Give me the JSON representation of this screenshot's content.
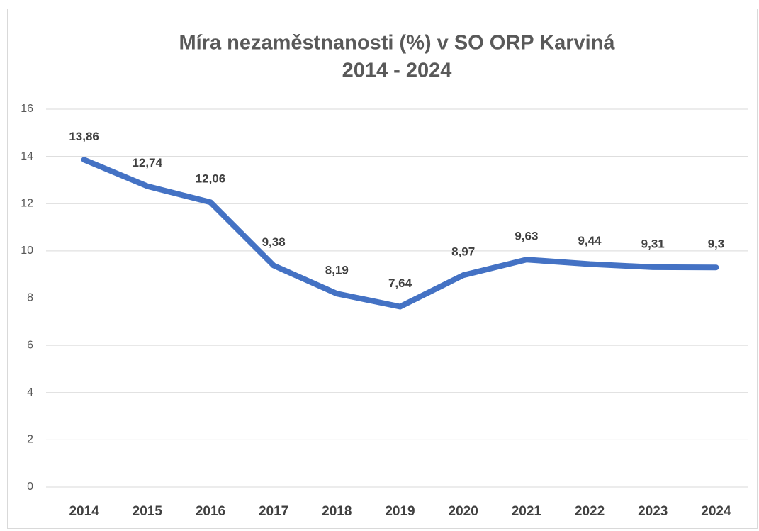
{
  "chart_data": {
    "type": "line",
    "title": "Míra nezaměstnanosti (%) v SO ORP Karviná",
    "subtitle": "2014 - 2024",
    "categories": [
      "2014",
      "2015",
      "2016",
      "2017",
      "2018",
      "2019",
      "2020",
      "2021",
      "2022",
      "2023",
      "2024"
    ],
    "series": [
      {
        "name": "Míra nezaměstnanosti (%)",
        "color": "#4472c4",
        "values": [
          13.86,
          12.74,
          12.06,
          9.38,
          8.19,
          7.64,
          8.97,
          9.63,
          9.44,
          9.31,
          9.3
        ],
        "value_labels": [
          "13,86",
          "12,74",
          "12,06",
          "9,38",
          "8,19",
          "7,64",
          "8,97",
          "9,63",
          "9,44",
          "9,31",
          "9,3"
        ]
      }
    ],
    "ylim": [
      0,
      16
    ],
    "yticks": [
      0,
      2,
      4,
      6,
      8,
      10,
      12,
      14,
      16
    ],
    "grid": true
  }
}
